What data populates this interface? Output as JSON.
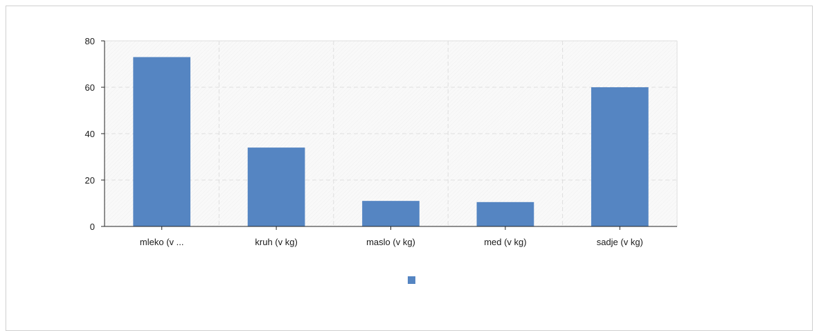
{
  "chart_data": {
    "type": "bar",
    "categories": [
      "mleko (v ...",
      "kruh (v kg)",
      "maslo (v kg)",
      "med (v kg)",
      "sadje (v kg)"
    ],
    "series": [
      {
        "values": [
          73,
          34,
          11,
          10.5,
          60
        ]
      }
    ],
    "ylim": [
      0,
      80
    ],
    "yticks": [
      0,
      20,
      40,
      60,
      80
    ],
    "grid": true,
    "legend": "bottom-center",
    "colors": {
      "bar": "#5585c2",
      "grid": "#dedede",
      "axis": "#222222",
      "plot_bg": "#f7f7f7"
    }
  }
}
